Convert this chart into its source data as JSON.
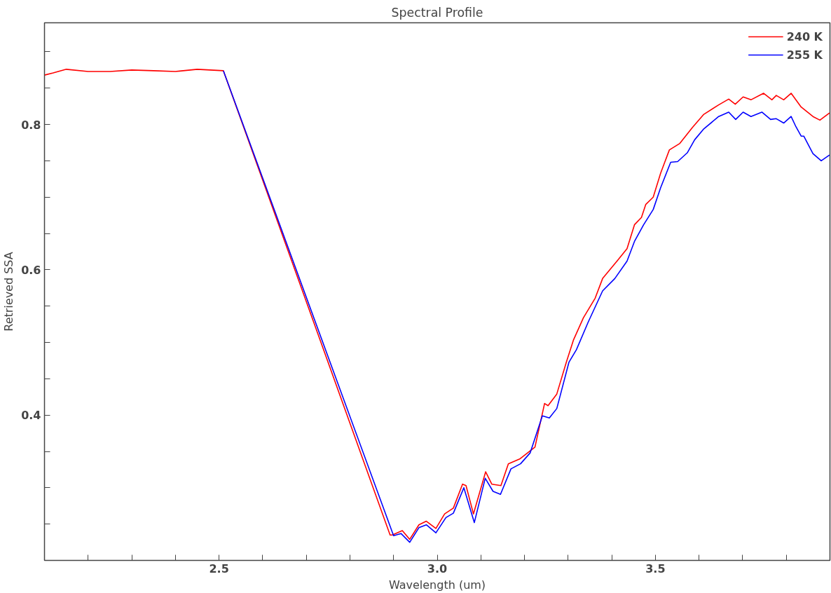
{
  "chart_data": {
    "type": "line",
    "title": "Spectral Profile",
    "xlabel": "Wavelength (um)",
    "ylabel": "Retrieved SSA",
    "xlim": [
      2.1,
      3.9
    ],
    "ylim": [
      0.2,
      0.94
    ],
    "xticks": [
      {
        "value": 2.1,
        "label": null
      },
      {
        "value": 2.2,
        "label": null
      },
      {
        "value": 2.3,
        "label": null
      },
      {
        "value": 2.4,
        "label": null
      },
      {
        "value": 2.5,
        "label": "2.5"
      },
      {
        "value": 2.6,
        "label": null
      },
      {
        "value": 2.7,
        "label": null
      },
      {
        "value": 2.8,
        "label": null
      },
      {
        "value": 2.9,
        "label": null
      },
      {
        "value": 3.0,
        "label": "3.0"
      },
      {
        "value": 3.1,
        "label": null
      },
      {
        "value": 3.2,
        "label": null
      },
      {
        "value": 3.3,
        "label": null
      },
      {
        "value": 3.4,
        "label": null
      },
      {
        "value": 3.5,
        "label": "3.5"
      },
      {
        "value": 3.6,
        "label": null
      },
      {
        "value": 3.7,
        "label": null
      },
      {
        "value": 3.8,
        "label": null
      }
    ],
    "yticks": [
      {
        "value": 0.25,
        "label": null
      },
      {
        "value": 0.3,
        "label": null
      },
      {
        "value": 0.35,
        "label": null
      },
      0.4,
      {
        "value": 0.45,
        "label": null
      },
      {
        "value": 0.5,
        "label": null
      },
      {
        "value": 0.55,
        "label": null
      },
      0.6,
      {
        "value": 0.65,
        "label": null
      },
      {
        "value": 0.7,
        "label": null
      },
      {
        "value": 0.75,
        "label": null
      },
      0.8,
      {
        "value": 0.85,
        "label": null
      },
      {
        "value": 0.9,
        "label": null
      }
    ],
    "grid": false,
    "legend": "top right",
    "marker": "none",
    "line_style": "solid",
    "series": [
      {
        "name": "240 K",
        "color": "#ff0000",
        "x": [
          2.1,
          2.12,
          2.15,
          2.2,
          2.25,
          2.3,
          2.35,
          2.4,
          2.45,
          2.51,
          2.892,
          2.897,
          2.92,
          2.937,
          2.958,
          2.975,
          2.997,
          3.017,
          3.037,
          3.058,
          3.066,
          3.083,
          3.111,
          3.125,
          3.146,
          3.163,
          3.19,
          3.224,
          3.246,
          3.254,
          3.274,
          3.296,
          3.312,
          3.335,
          3.362,
          3.379,
          3.412,
          3.435,
          3.452,
          3.468,
          3.478,
          3.495,
          3.512,
          3.532,
          3.556,
          3.585,
          3.611,
          3.645,
          3.668,
          3.683,
          3.701,
          3.719,
          3.748,
          3.767,
          3.777,
          3.794,
          3.811,
          3.834,
          3.861,
          3.877,
          3.899
        ],
        "values": [
          0.868,
          0.871,
          0.876,
          0.873,
          0.873,
          0.875,
          0.874,
          0.873,
          0.876,
          0.874,
          0.235,
          0.235,
          0.241,
          0.229,
          0.249,
          0.254,
          0.244,
          0.264,
          0.272,
          0.305,
          0.303,
          0.264,
          0.322,
          0.305,
          0.303,
          0.333,
          0.34,
          0.356,
          0.416,
          0.413,
          0.429,
          0.473,
          0.503,
          0.534,
          0.561,
          0.588,
          0.612,
          0.629,
          0.662,
          0.672,
          0.69,
          0.7,
          0.733,
          0.765,
          0.774,
          0.796,
          0.814,
          0.827,
          0.835,
          0.828,
          0.838,
          0.834,
          0.843,
          0.834,
          0.84,
          0.834,
          0.843,
          0.824,
          0.811,
          0.806,
          0.816
        ]
      },
      {
        "name": "255 K",
        "color": "#0000ff",
        "x": [
          2.51,
          2.9,
          2.917,
          2.937,
          2.958,
          2.975,
          2.997,
          3.02,
          3.037,
          3.061,
          3.085,
          3.11,
          3.128,
          3.145,
          3.169,
          3.191,
          3.213,
          3.241,
          3.257,
          3.274,
          3.302,
          3.319,
          3.346,
          3.379,
          3.407,
          3.435,
          3.452,
          3.473,
          3.495,
          3.512,
          3.535,
          3.551,
          3.573,
          3.59,
          3.611,
          3.645,
          3.668,
          3.684,
          3.701,
          3.719,
          3.744,
          3.764,
          3.777,
          3.794,
          3.811,
          3.822,
          3.834,
          3.84,
          3.861,
          3.88,
          3.899
        ],
        "values": [
          0.874,
          0.234,
          0.237,
          0.225,
          0.245,
          0.249,
          0.238,
          0.259,
          0.265,
          0.3,
          0.252,
          0.313,
          0.295,
          0.291,
          0.326,
          0.333,
          0.348,
          0.399,
          0.396,
          0.409,
          0.473,
          0.49,
          0.528,
          0.571,
          0.588,
          0.612,
          0.639,
          0.662,
          0.683,
          0.713,
          0.748,
          0.749,
          0.761,
          0.779,
          0.794,
          0.811,
          0.817,
          0.807,
          0.817,
          0.811,
          0.817,
          0.807,
          0.808,
          0.802,
          0.811,
          0.797,
          0.784,
          0.784,
          0.76,
          0.75,
          0.758
        ]
      }
    ]
  }
}
